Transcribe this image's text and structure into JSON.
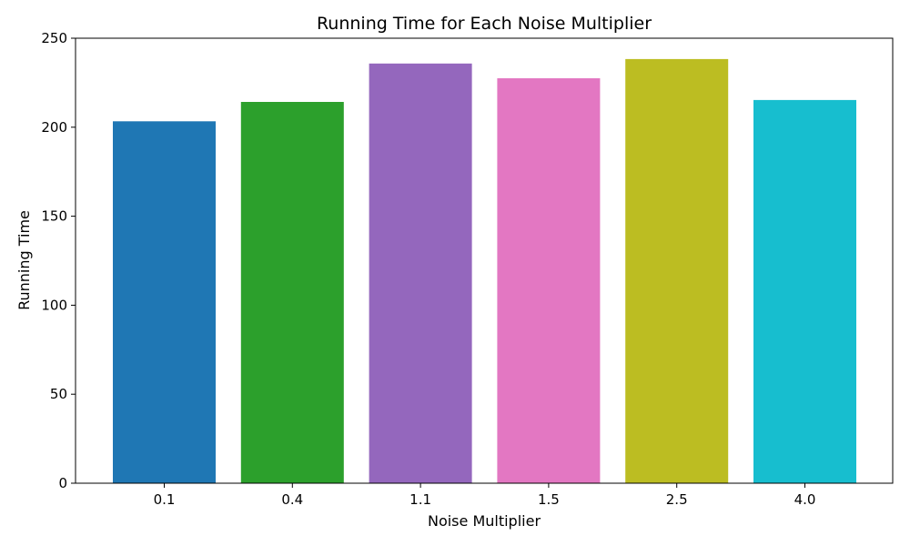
{
  "chart_data": {
    "type": "bar",
    "title": "Running Time for Each Noise Multiplier",
    "xlabel": "Noise Multiplier",
    "ylabel": "Running Time",
    "categories": [
      "0.1",
      "0.4",
      "1.1",
      "1.5",
      "2.5",
      "4.0"
    ],
    "values": [
      203.3,
      214.2,
      235.8,
      227.5,
      238.3,
      215.3
    ],
    "colors": [
      "#1f77b4",
      "#2ca02c",
      "#9467bd",
      "#e377c2",
      "#bcbd22",
      "#17becf"
    ],
    "ylim": [
      0,
      250
    ],
    "yticks": [
      0,
      50,
      100,
      150,
      200,
      250
    ],
    "ytick_labels": [
      "0",
      "50",
      "100",
      "150",
      "200",
      "250"
    ],
    "grid": false,
    "legend": "none"
  }
}
